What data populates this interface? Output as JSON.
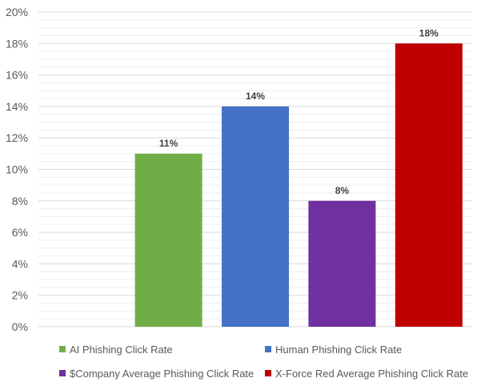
{
  "chart_data": {
    "type": "bar",
    "categories": [
      "AI Phishing Click Rate",
      "Human Phishing Click Rate",
      "$Company Average Phishing Click Rate",
      "X-Force Red Average Phishing Click Rate"
    ],
    "values": [
      11,
      14,
      8,
      18
    ],
    "data_labels": [
      "11%",
      "14%",
      "8%",
      "18%"
    ],
    "colors": [
      "#70ad47",
      "#4472c4",
      "#7030a0",
      "#c00000"
    ],
    "ylim": [
      0,
      20
    ],
    "y_tick_values": [
      0,
      2,
      4,
      6,
      8,
      10,
      12,
      14,
      16,
      18,
      20
    ],
    "y_tick_labels": [
      "0%",
      "2%",
      "4%",
      "6%",
      "8%",
      "10%",
      "12%",
      "14%",
      "16%",
      "18%",
      "20%"
    ],
    "grid": true,
    "legend_position": "bottom",
    "title": "",
    "xlabel": "",
    "ylabel": ""
  }
}
